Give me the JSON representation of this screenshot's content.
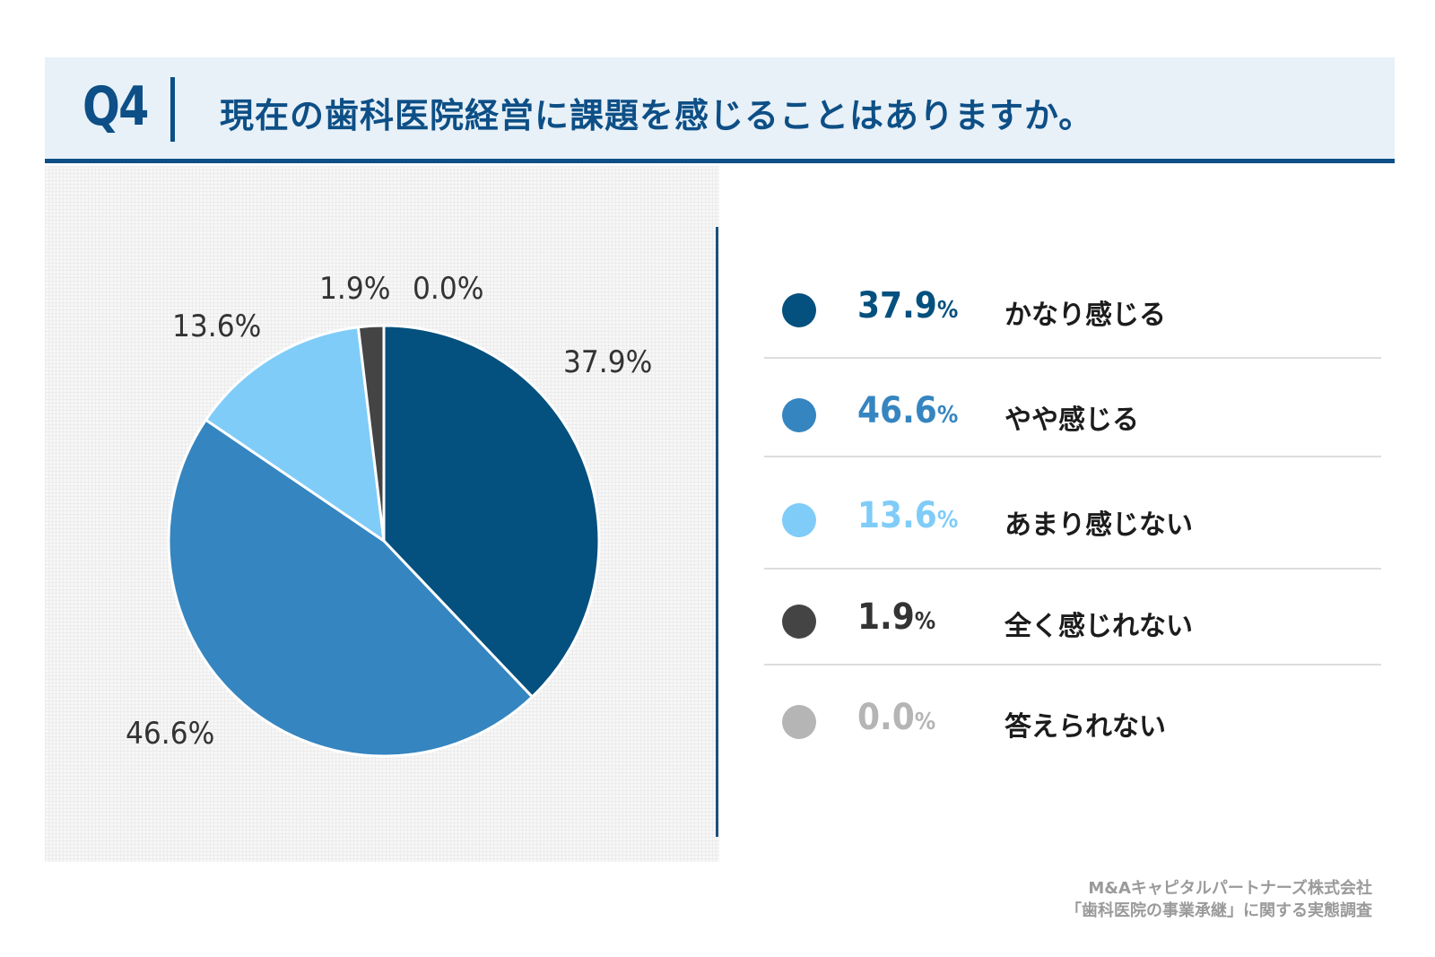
{
  "header": {
    "q_number": "Q4",
    "question": "現在の歯科医院経営に課題を感じることはありますか。"
  },
  "chart_data": {
    "type": "pie",
    "title": "現在の歯科医院経営に課題を感じることはありますか。",
    "slices": [
      {
        "label": "かなり感じる",
        "value": 37.9,
        "display": "37.9%",
        "pct_num": "37.9",
        "color": "#04507e"
      },
      {
        "label": "やや感じる",
        "value": 46.6,
        "display": "46.6%",
        "pct_num": "46.6",
        "color": "#3585c0"
      },
      {
        "label": "あまり感じない",
        "value": 13.6,
        "display": "13.6%",
        "pct_num": "13.6",
        "color": "#80ccf8"
      },
      {
        "label": "全く感じれない",
        "value": 1.9,
        "display": "1.9%",
        "pct_num": "1.9",
        "color": "#444444"
      },
      {
        "label": "答えられない",
        "value": 0.0,
        "display": "0.0%",
        "pct_num": "0.0",
        "color": "#b5b5b5"
      }
    ],
    "percent_sign": "%"
  },
  "source": {
    "line1": "M&Aキャピタルパートナーズ株式会社",
    "line2": "「歯科医院の事業承継」に関する実態調査"
  }
}
